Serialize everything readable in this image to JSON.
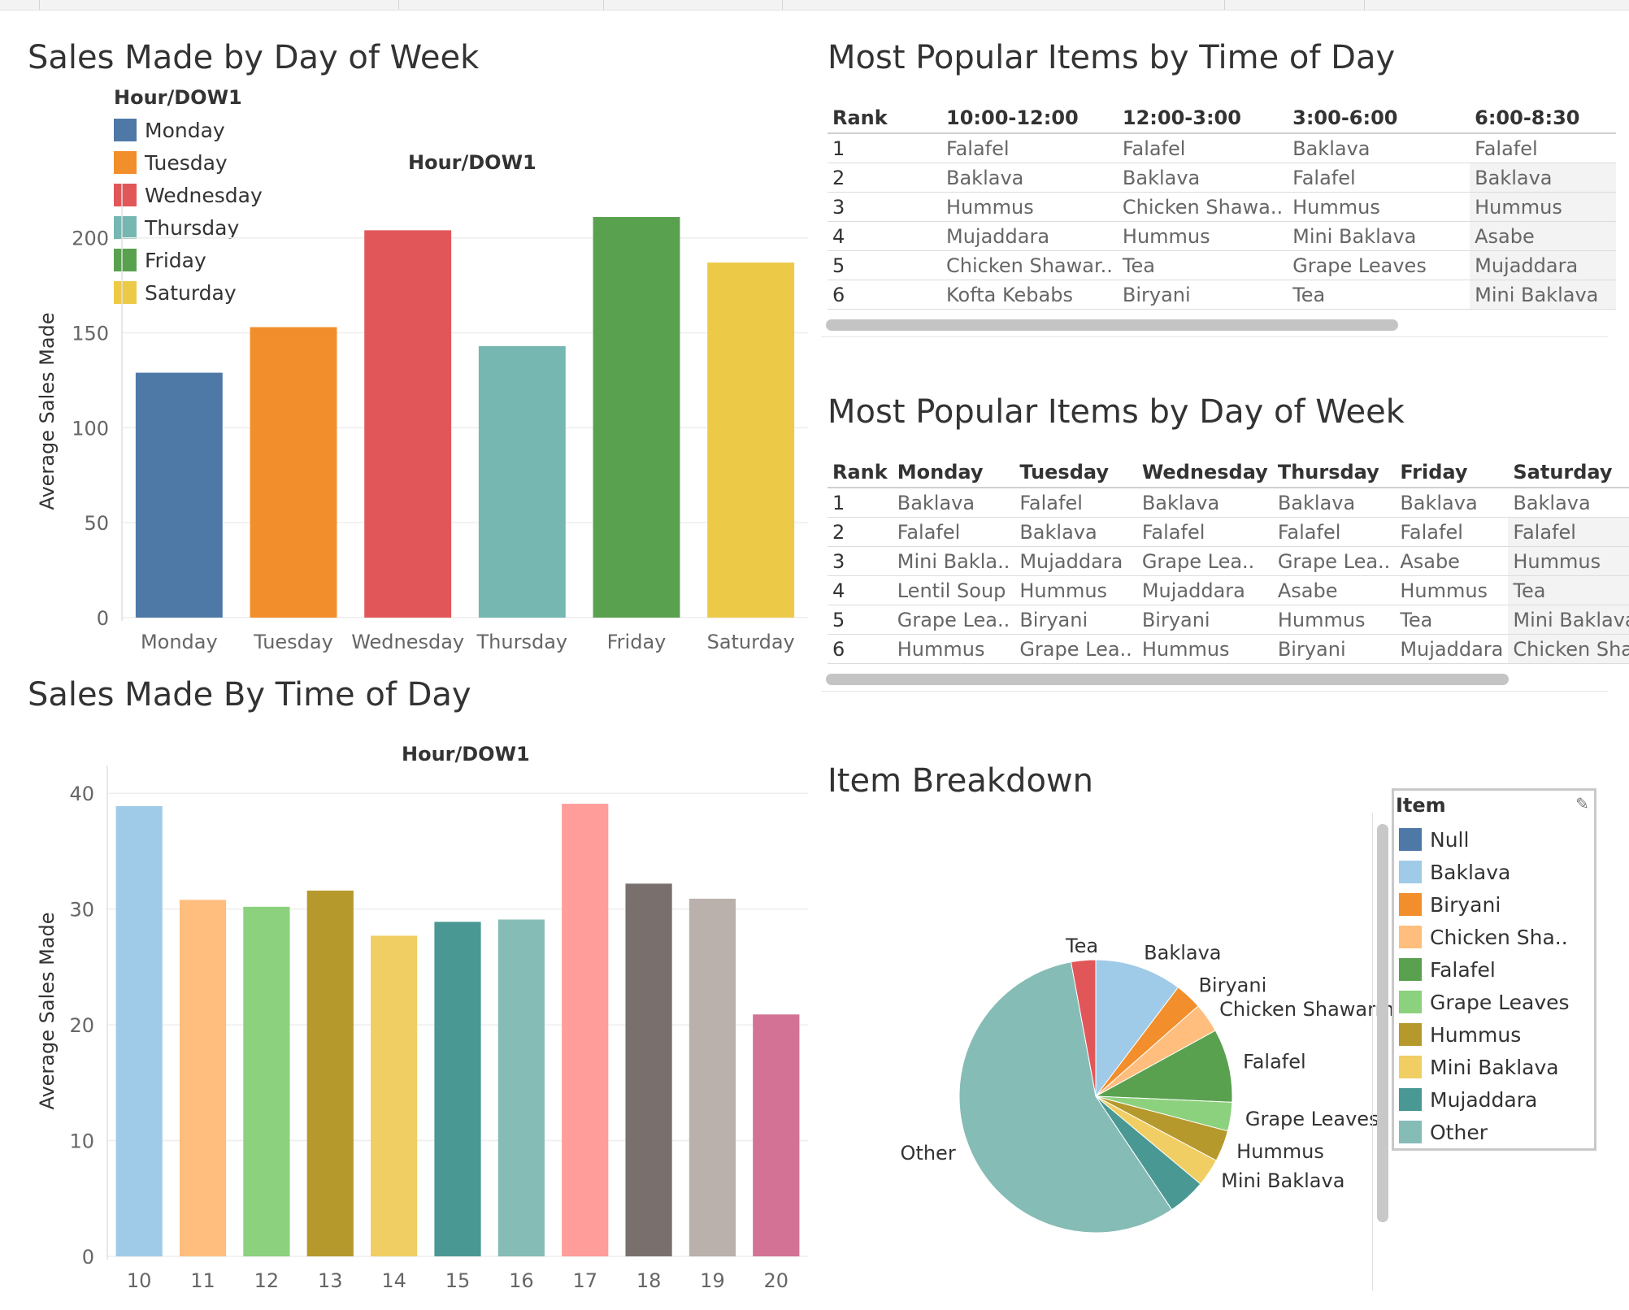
{
  "colors": {
    "monday": "#4e79a7",
    "tuesday": "#f28e2b",
    "wednesday": "#e15759",
    "thursday": "#76b7b2",
    "friday": "#59a14f",
    "saturday": "#edc948"
  },
  "dow_chart": {
    "title": "Sales Made by Day of Week",
    "header": "Hour/DOW1",
    "legend_title": "Hour/DOW1",
    "ylabel": "Average Sales Made",
    "legend": [
      {
        "label": "Monday",
        "color": "#4e79a7"
      },
      {
        "label": "Tuesday",
        "color": "#f28e2b"
      },
      {
        "label": "Wednesday",
        "color": "#e15759"
      },
      {
        "label": "Thursday",
        "color": "#76b7b2"
      },
      {
        "label": "Friday",
        "color": "#59a14f"
      },
      {
        "label": "Saturday",
        "color": "#edc948"
      }
    ]
  },
  "tod_chart": {
    "title": "Sales Made By Time of Day",
    "header": "Hour/DOW1",
    "ylabel": "Average Sales Made"
  },
  "time_table": {
    "title": "Most Popular Items by Time of Day",
    "columns": [
      "Rank",
      "10:00-12:00",
      "12:00-3:00",
      "3:00-6:00",
      "6:00-8:30"
    ],
    "rows": [
      [
        "1",
        "Falafel",
        "Falafel",
        "Baklava",
        "Falafel"
      ],
      [
        "2",
        "Baklava",
        "Baklava",
        "Falafel",
        "Baklava"
      ],
      [
        "3",
        "Hummus",
        "Chicken Shawa..",
        "Hummus",
        "Hummus"
      ],
      [
        "4",
        "Mujaddara",
        "Hummus",
        "Mini Baklava",
        "Asabe"
      ],
      [
        "5",
        "Chicken Shawar..",
        "Tea",
        "Grape Leaves",
        "Mujaddara"
      ],
      [
        "6",
        "Kofta Kebabs",
        "Biryani",
        "Tea",
        "Mini Baklava"
      ]
    ]
  },
  "day_table": {
    "title": "Most Popular Items by Day of Week",
    "columns": [
      "Rank",
      "Monday",
      "Tuesday",
      "Wednesday",
      "Thursday",
      "Friday",
      "Saturday"
    ],
    "rows": [
      [
        "1",
        "Baklava",
        "Falafel",
        "Baklava",
        "Baklava",
        "Baklava",
        "Baklava"
      ],
      [
        "2",
        "Falafel",
        "Baklava",
        "Falafel",
        "Falafel",
        "Falafel",
        "Falafel"
      ],
      [
        "3",
        "Mini Bakla..",
        "Mujaddara",
        "Grape Lea..",
        "Grape Lea..",
        "Asabe",
        "Hummus"
      ],
      [
        "4",
        "Lentil Soup",
        "Hummus",
        "Mujaddara",
        "Asabe",
        "Hummus",
        "Tea"
      ],
      [
        "5",
        "Grape Lea..",
        "Biryani",
        "Biryani",
        "Hummus",
        "Tea",
        "Mini Baklava"
      ],
      [
        "6",
        "Hummus",
        "Grape Lea..",
        "Hummus",
        "Biryani",
        "Mujaddara",
        "Chicken Sha.."
      ]
    ]
  },
  "pie_panel": {
    "title": "Item Breakdown",
    "legend_title": "Item",
    "legend": [
      {
        "label": "Null",
        "color": "#4e79a7"
      },
      {
        "label": "Baklava",
        "color": "#a0cbe8"
      },
      {
        "label": "Biryani",
        "color": "#f28e2b"
      },
      {
        "label": "Chicken Sha..",
        "color": "#ffbe7d"
      },
      {
        "label": "Falafel",
        "color": "#59a14f"
      },
      {
        "label": "Grape Leaves",
        "color": "#8cd17d"
      },
      {
        "label": "Hummus",
        "color": "#b6992d"
      },
      {
        "label": "Mini Baklava",
        "color": "#f1ce63"
      },
      {
        "label": "Mujaddara",
        "color": "#499894"
      },
      {
        "label": "Other",
        "color": "#86bcb6"
      }
    ]
  },
  "chart_data": [
    {
      "type": "bar",
      "title": "Sales Made by Day of Week",
      "xlabel": "Hour/DOW1",
      "ylabel": "Average Sales Made",
      "categories": [
        "Monday",
        "Tuesday",
        "Wednesday",
        "Thursday",
        "Friday",
        "Saturday"
      ],
      "values": [
        129,
        153,
        204,
        143,
        211,
        187
      ],
      "colors": [
        "#4e79a7",
        "#f28e2b",
        "#e15759",
        "#76b7b2",
        "#59a14f",
        "#edc948"
      ],
      "ylim": [
        0,
        220
      ],
      "yticks": [
        0,
        50,
        100,
        150,
        200
      ],
      "grid": true,
      "legend": "left"
    },
    {
      "type": "bar",
      "title": "Sales Made By Time of Day",
      "xlabel": "Hour/DOW1",
      "ylabel": "Average Sales Made",
      "categories": [
        "10",
        "11",
        "12",
        "13",
        "14",
        "15",
        "16",
        "17",
        "18",
        "19",
        "20"
      ],
      "values": [
        38.9,
        30.8,
        30.2,
        31.6,
        27.7,
        28.9,
        29.1,
        39.1,
        32.2,
        30.9,
        20.9
      ],
      "colors": [
        "#a0cbe8",
        "#ffbe7d",
        "#8cd17d",
        "#b6992d",
        "#f1ce63",
        "#499894",
        "#86bcb6",
        "#ff9d9a",
        "#79706e",
        "#bab0ac",
        "#d37295"
      ],
      "ylim": [
        0,
        41
      ],
      "yticks": [
        0,
        10,
        20,
        30,
        40
      ],
      "grid": true
    },
    {
      "type": "pie",
      "title": "Item Breakdown",
      "slices": [
        {
          "label": "Baklava",
          "value": 10.3,
          "color": "#a0cbe8"
        },
        {
          "label": "Biryani",
          "value": 3.2,
          "color": "#f28e2b"
        },
        {
          "label": "Chicken Shawarma",
          "value": 3.5,
          "color": "#ffbe7d"
        },
        {
          "label": "Falafel",
          "value": 8.7,
          "color": "#59a14f"
        },
        {
          "label": "Grape Leaves",
          "value": 3.4,
          "color": "#8cd17d"
        },
        {
          "label": "Hummus",
          "value": 3.7,
          "color": "#b6992d"
        },
        {
          "label": "Mini Baklava",
          "value": 3.3,
          "color": "#f1ce63"
        },
        {
          "label": "",
          "value": 4.5,
          "color": "#499894"
        },
        {
          "label": "Other",
          "value": 56.5,
          "color": "#86bcb6"
        },
        {
          "label": "Tea",
          "value": 2.9,
          "color": "#e15759"
        }
      ]
    }
  ]
}
